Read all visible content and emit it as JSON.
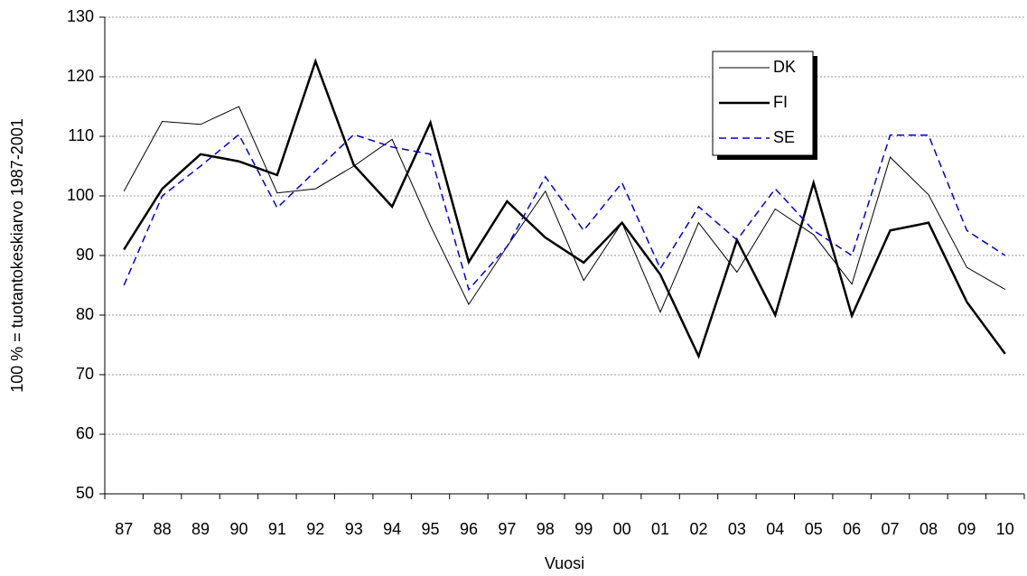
{
  "chart_data": {
    "type": "line",
    "x_label": "Vuosi",
    "y_label": "100 % = tuotantokeskiarvo 1987-2001",
    "categories": [
      "87",
      "88",
      "89",
      "90",
      "91",
      "92",
      "93",
      "94",
      "95",
      "96",
      "97",
      "98",
      "99",
      "00",
      "01",
      "02",
      "03",
      "04",
      "05",
      "06",
      "07",
      "08",
      "09",
      "10"
    ],
    "series": [
      {
        "name": "DK",
        "color": "#000000",
        "values": [
          100.8,
          112.5,
          112,
          115,
          100.5,
          101.2,
          105,
          109.5,
          95,
          81.8,
          91.5,
          100.8,
          85.8,
          95.5,
          80.5,
          95.5,
          87.2,
          97.8,
          93.5,
          85.2,
          106.5,
          100.2,
          88,
          84.3
        ]
      },
      {
        "name": "FI",
        "color": "#000000",
        "values": [
          91,
          101.2,
          107,
          105.8,
          103.5,
          122.6,
          105.2,
          98.2,
          112.3,
          88.9,
          99.1,
          93,
          88.8,
          95.5,
          86.8,
          73.1,
          92.6,
          80,
          102.2,
          79.9,
          94.2,
          95.5,
          82.2,
          73.5
        ]
      },
      {
        "name": "SE",
        "color": "#0000cc",
        "values": [
          85,
          100,
          105,
          110.3,
          98,
          104.2,
          110.3,
          108.2,
          107,
          84.3,
          91.5,
          103.2,
          94.2,
          102.2,
          87.8,
          98.2,
          92.6,
          101.2,
          94.2,
          90,
          110.2,
          110.2,
          94.2,
          90
        ]
      }
    ],
    "ylim": [
      50,
      130
    ],
    "yticks": [
      50,
      60,
      70,
      80,
      90,
      100,
      110,
      120,
      130
    ],
    "grid": true
  }
}
